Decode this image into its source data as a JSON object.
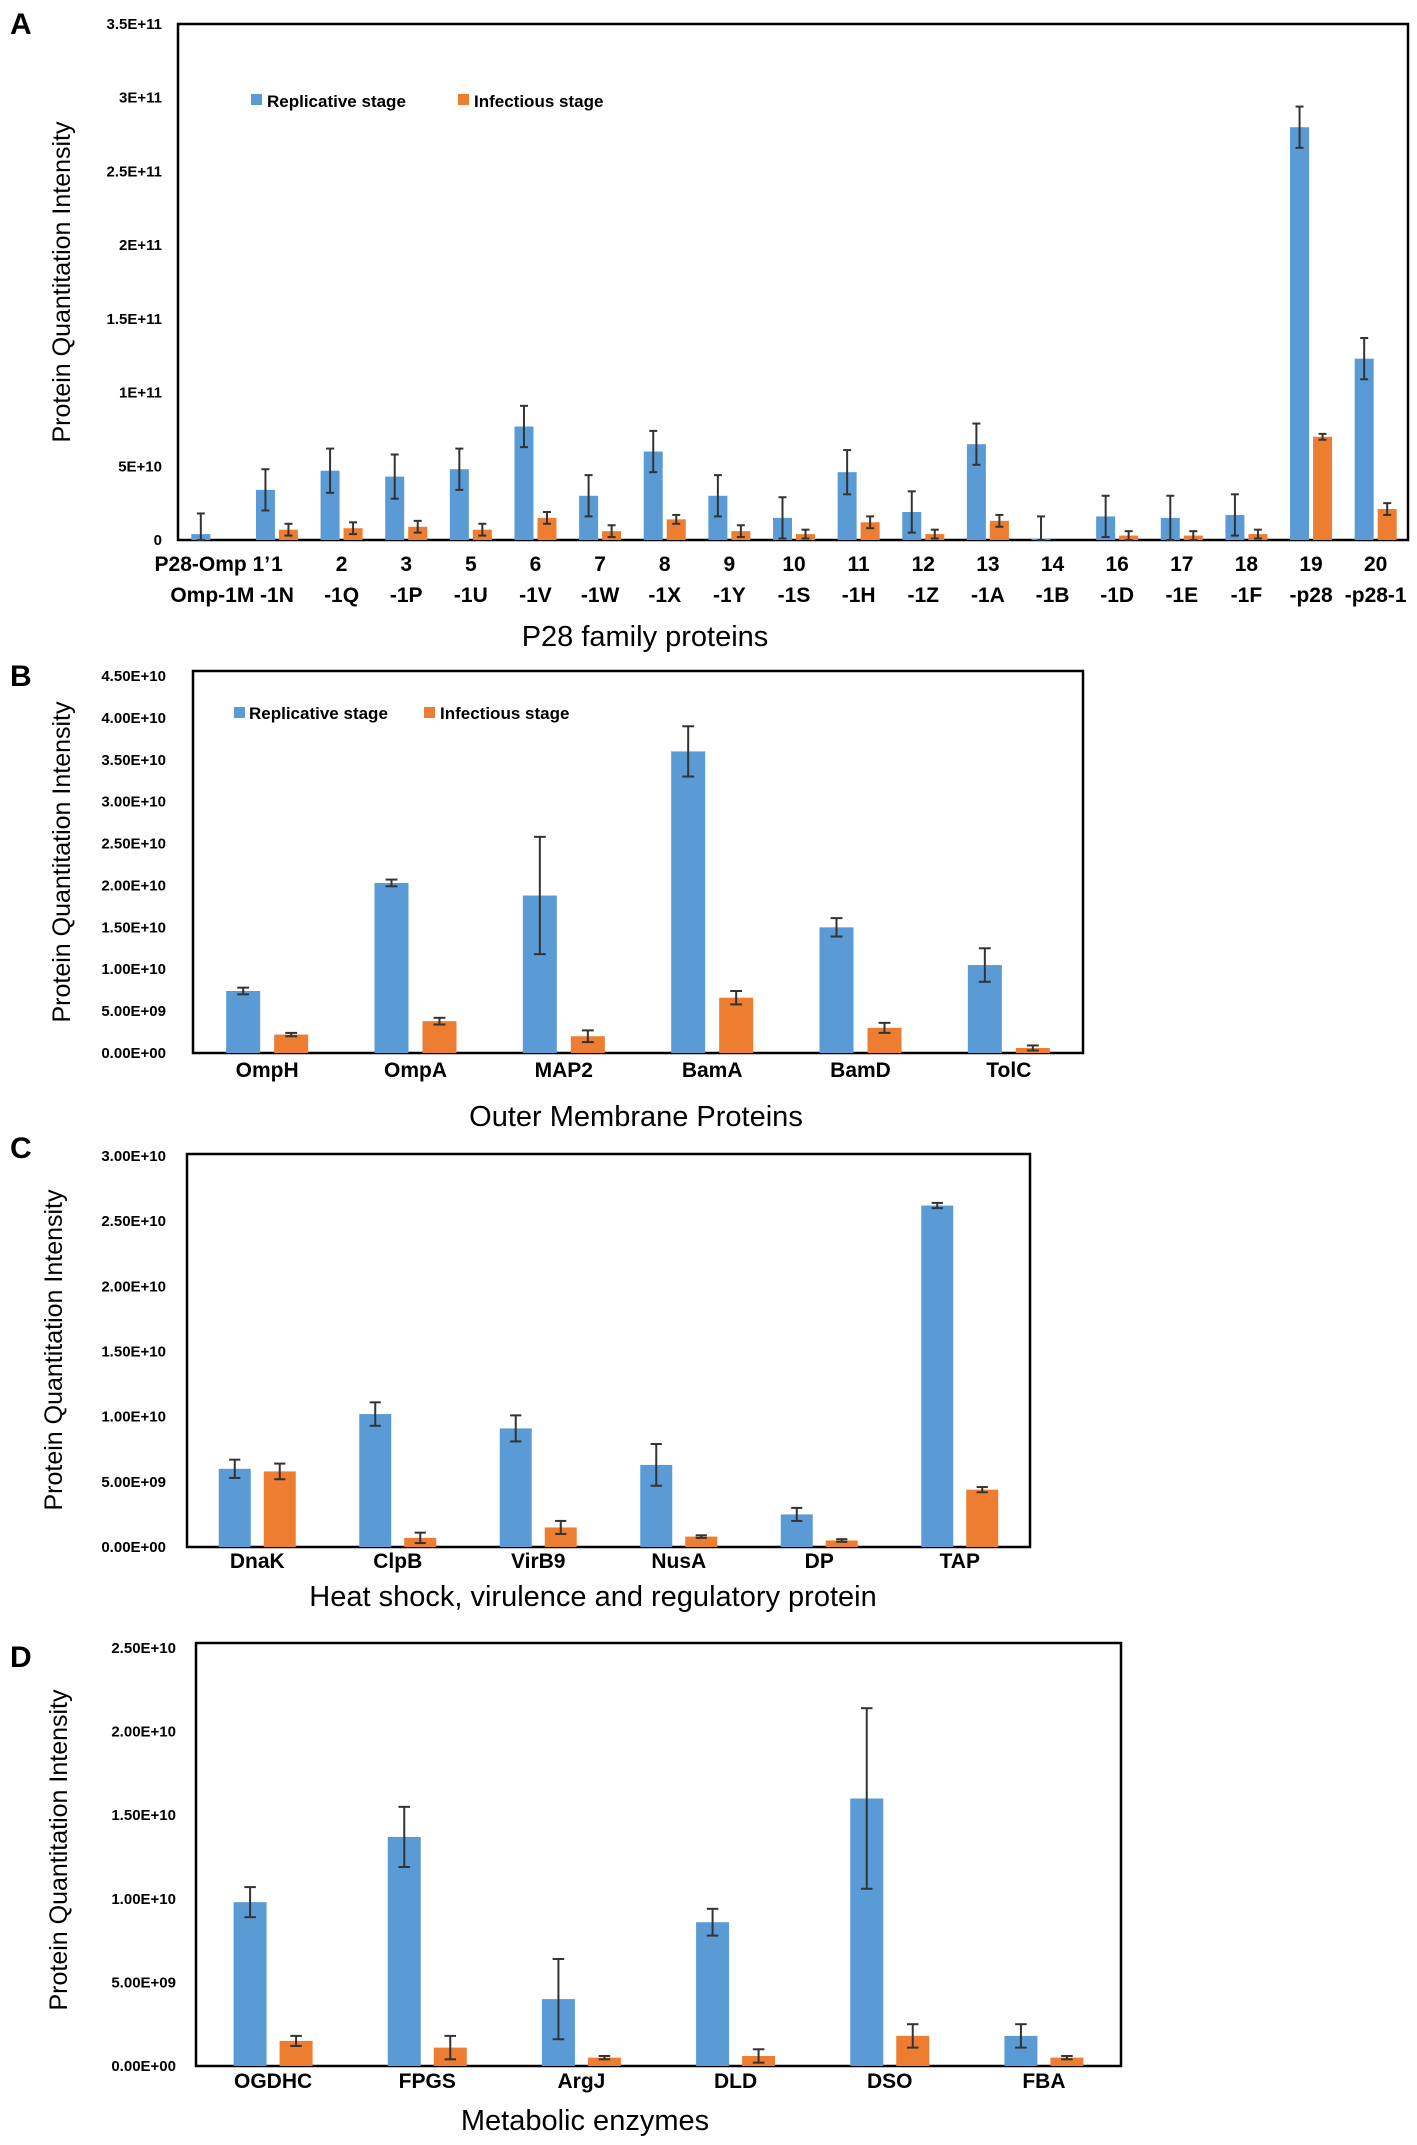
{
  "colors": {
    "replicative": "#5b9bd5",
    "infectious": "#ed7d31"
  },
  "chart_data": [
    {
      "panel_label": "A",
      "type": "bar",
      "xlabel": "P28 family proteins",
      "ylabel": "Protein Quantitation Intensity",
      "ylim": [
        0,
        350000000000.0
      ],
      "yticks": [
        "0",
        "5E+10",
        "1E+11",
        "1.5E+11",
        "2E+11",
        "2.5E+11",
        "3E+11",
        "3.5E+11"
      ],
      "legend": [
        "Replicative stage",
        "Infectious stage"
      ],
      "categories": [
        [
          "P28-Omp 1’",
          "Omp-1M"
        ],
        [
          "1",
          "-1N"
        ],
        [
          "2",
          "-1Q"
        ],
        [
          "3",
          "-1P"
        ],
        [
          "5",
          "-1U"
        ],
        [
          "6",
          "-1V"
        ],
        [
          "7",
          "-1W"
        ],
        [
          "8",
          "-1X"
        ],
        [
          "9",
          "-1Y"
        ],
        [
          "10",
          "-1S"
        ],
        [
          "11",
          "-1H"
        ],
        [
          "12",
          "-1Z"
        ],
        [
          "13",
          "-1A"
        ],
        [
          "14",
          "-1B"
        ],
        [
          "16",
          "-1D"
        ],
        [
          "17",
          "-1E"
        ],
        [
          "18",
          "-1F"
        ],
        [
          "19",
          "-p28"
        ],
        [
          "20",
          "-p28-1"
        ]
      ],
      "series": [
        {
          "name": "Replicative stage",
          "values": [
            4000000000.0,
            34000000000.0,
            47000000000.0,
            43000000000.0,
            48000000000.0,
            77000000000.0,
            30000000000.0,
            60000000000.0,
            30000000000.0,
            15000000000.0,
            46000000000.0,
            19000000000.0,
            65000000000.0,
            1000000000.0,
            16000000000.0,
            15000000000.0,
            17000000000.0,
            280000000000.0,
            123000000000.0
          ],
          "errors": [
            14000000000.0,
            14000000000.0,
            15000000000.0,
            15000000000.0,
            14000000000.0,
            14000000000.0,
            14000000000.0,
            14000000000.0,
            14000000000.0,
            14000000000.0,
            15000000000.0,
            14000000000.0,
            14000000000.0,
            15000000000.0,
            14000000000.0,
            15000000000.0,
            14000000000.0,
            14000000000.0,
            14000000000.0
          ]
        },
        {
          "name": "Infectious stage",
          "values": [
            0,
            7000000000.0,
            8000000000.0,
            9000000000.0,
            7000000000.0,
            15000000000.0,
            6000000000.0,
            14000000000.0,
            6000000000.0,
            4000000000.0,
            12000000000.0,
            4000000000.0,
            13000000000.0,
            0,
            3000000000.0,
            3000000000.0,
            4000000000.0,
            70000000000.0,
            21000000000.0
          ],
          "errors": [
            0,
            4000000000.0,
            4000000000.0,
            4000000000.0,
            4000000000.0,
            4000000000.0,
            4000000000.0,
            3000000000.0,
            4000000000.0,
            3000000000.0,
            4000000000.0,
            3000000000.0,
            4000000000.0,
            0,
            3000000000.0,
            3000000000.0,
            3000000000.0,
            2000000000.0,
            4000000000.0
          ]
        }
      ]
    },
    {
      "panel_label": "B",
      "type": "bar",
      "xlabel": "Outer Membrane Proteins",
      "ylabel": "Protein Quantitation Intensity",
      "ylim": [
        0,
        45000000000.0
      ],
      "yticks": [
        "0.00E+00",
        "5.00E+09",
        "1.00E+10",
        "1.50E+10",
        "2.00E+10",
        "2.50E+10",
        "3.00E+10",
        "3.50E+10",
        "4.00E+10",
        "4.50E+10"
      ],
      "legend": [
        "Replicative stage",
        "Infectious stage"
      ],
      "categories": [
        "OmpH",
        "OmpA",
        "MAP2",
        "BamA",
        "BamD",
        "TolC"
      ],
      "series": [
        {
          "name": "Replicative stage",
          "values": [
            7400000000.0,
            20300000000.0,
            18800000000.0,
            36000000000.0,
            15000000000.0,
            10500000000.0
          ],
          "errors": [
            400000000.0,
            400000000.0,
            7000000000.0,
            3000000000.0,
            1100000000.0,
            2000000000.0
          ]
        },
        {
          "name": "Infectious stage",
          "values": [
            2200000000.0,
            3800000000.0,
            2000000000.0,
            6600000000.0,
            3000000000.0,
            600000000.0
          ],
          "errors": [
            200000000.0,
            400000000.0,
            700000000.0,
            800000000.0,
            600000000.0,
            300000000.0
          ]
        }
      ]
    },
    {
      "panel_label": "C",
      "type": "bar",
      "xlabel": "Heat shock, virulence and regulatory protein",
      "ylabel": "Protein Quantitation Intensity",
      "ylim": [
        0,
        30000000000.0
      ],
      "yticks": [
        "0.00E+00",
        "5.00E+09",
        "1.00E+10",
        "1.50E+10",
        "2.00E+10",
        "2.50E+10",
        "3.00E+10"
      ],
      "legend": [],
      "categories": [
        "DnaK",
        "ClpB",
        "VirB9",
        "NusA",
        "DP",
        "TAP"
      ],
      "series": [
        {
          "name": "Replicative stage",
          "values": [
            6000000000.0,
            10200000000.0,
            9100000000.0,
            6300000000.0,
            2500000000.0,
            26200000000.0
          ],
          "errors": [
            700000000.0,
            900000000.0,
            1000000000.0,
            1600000000.0,
            500000000.0,
            200000000.0
          ]
        },
        {
          "name": "Infectious stage",
          "values": [
            5800000000.0,
            700000000.0,
            1500000000.0,
            800000000.0,
            500000000.0,
            4400000000.0
          ],
          "errors": [
            600000000.0,
            400000000.0,
            500000000.0,
            100000000.0,
            100000000.0,
            200000000.0
          ]
        }
      ]
    },
    {
      "panel_label": "D",
      "type": "bar",
      "xlabel": "Metabolic enzymes",
      "ylabel": "Protein Quantitation Intensity",
      "ylim": [
        0,
        25000000000.0
      ],
      "yticks": [
        "0.00E+00",
        "5.00E+09",
        "1.00E+10",
        "1.50E+10",
        "2.00E+10",
        "2.50E+10"
      ],
      "legend": [],
      "categories": [
        "OGDHC",
        "FPGS",
        "ArgJ",
        "DLD",
        "DSO",
        "FBA"
      ],
      "series": [
        {
          "name": "Replicative stage",
          "values": [
            9800000000.0,
            13700000000.0,
            4000000000.0,
            8600000000.0,
            16000000000.0,
            1800000000.0
          ],
          "errors": [
            900000000.0,
            1800000000.0,
            2400000000.0,
            800000000.0,
            5400000000.0,
            700000000.0
          ]
        },
        {
          "name": "Infectious stage",
          "values": [
            1500000000.0,
            1100000000.0,
            500000000.0,
            600000000.0,
            1800000000.0,
            500000000.0
          ],
          "errors": [
            300000000.0,
            700000000.0,
            100000000.0,
            400000000.0,
            700000000.0,
            100000000.0
          ]
        }
      ]
    }
  ]
}
